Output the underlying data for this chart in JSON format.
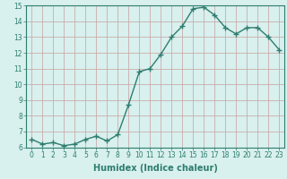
{
  "xlabel": "Humidex (Indice chaleur)",
  "ylabel": "",
  "x": [
    0,
    1,
    2,
    3,
    4,
    5,
    6,
    7,
    8,
    9,
    10,
    11,
    12,
    13,
    14,
    15,
    16,
    17,
    18,
    19,
    20,
    21,
    22,
    23
  ],
  "y": [
    6.5,
    6.2,
    6.3,
    6.1,
    6.2,
    6.5,
    6.7,
    6.4,
    6.8,
    8.7,
    10.8,
    11.0,
    11.9,
    13.0,
    13.7,
    14.8,
    14.9,
    14.4,
    13.6,
    13.2,
    13.6,
    13.6,
    13.0,
    12.2
  ],
  "line_color": "#2e7d6e",
  "marker": "+",
  "marker_size": 4,
  "bg_color": "#d8f0ee",
  "grid_color": "#c8a0a0",
  "ylim": [
    6,
    15
  ],
  "xlim": [
    -0.5,
    23.5
  ],
  "yticks": [
    6,
    7,
    8,
    9,
    10,
    11,
    12,
    13,
    14,
    15
  ],
  "xticks": [
    0,
    1,
    2,
    3,
    4,
    5,
    6,
    7,
    8,
    9,
    10,
    11,
    12,
    13,
    14,
    15,
    16,
    17,
    18,
    19,
    20,
    21,
    22,
    23
  ],
  "tick_fontsize": 5.5,
  "xlabel_fontsize": 7,
  "linewidth": 1.0
}
